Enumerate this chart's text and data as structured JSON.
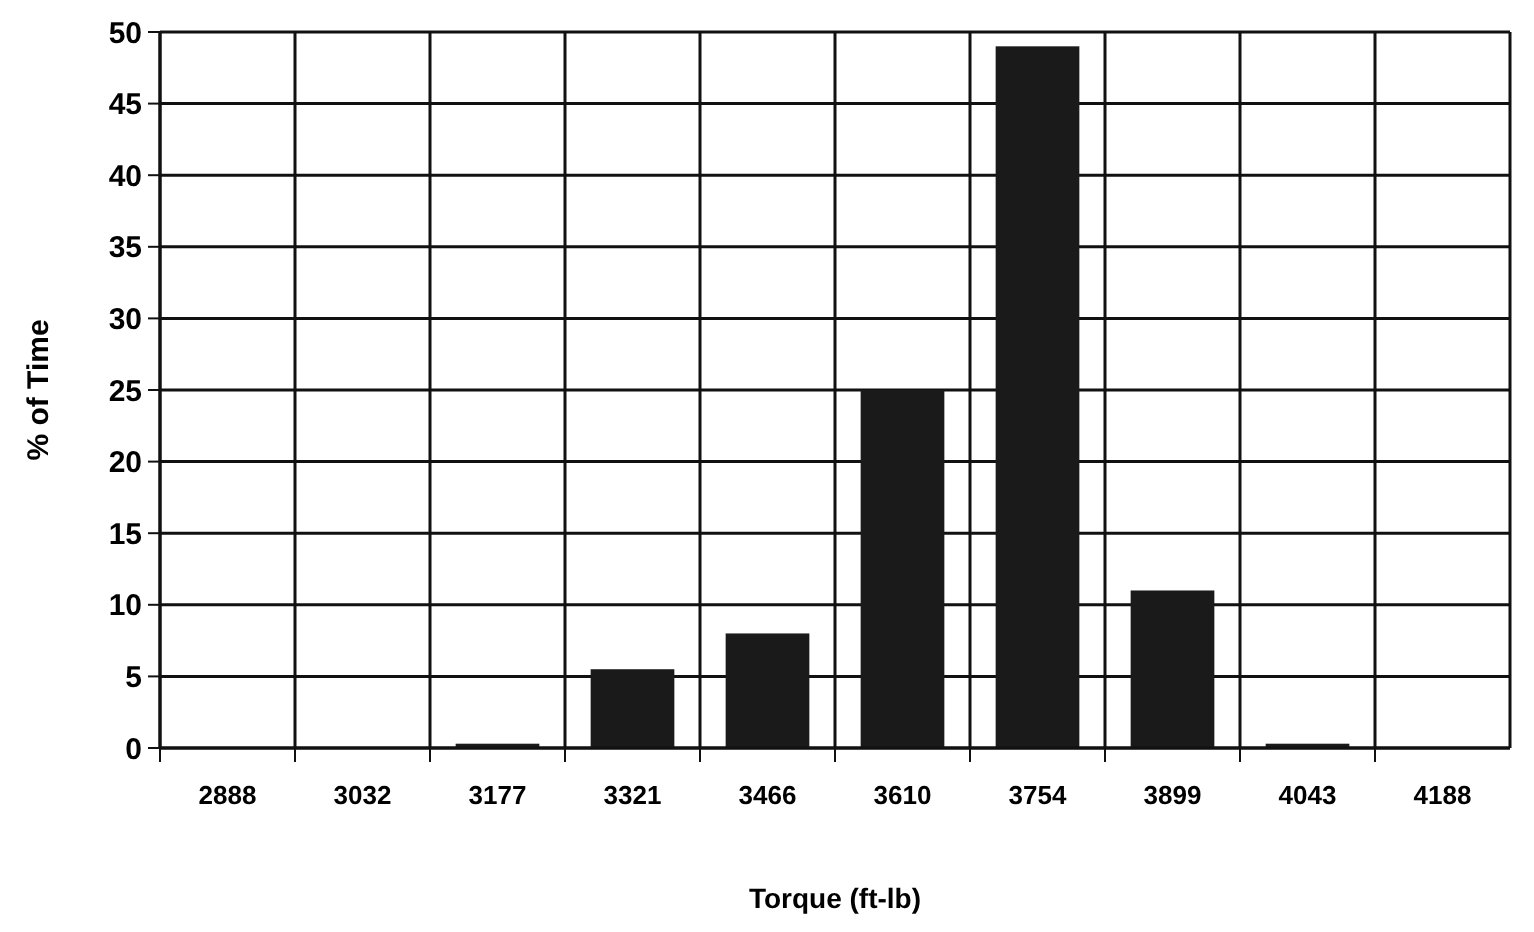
{
  "chart_data": {
    "type": "bar",
    "xlabel": "Torque (ft-lb)",
    "ylabel": "% of Time",
    "categories": [
      "2888",
      "3032",
      "3177",
      "3321",
      "3466",
      "3610",
      "3754",
      "3899",
      "4043",
      "4188"
    ],
    "values": [
      0,
      0,
      0.3,
      5.5,
      8,
      25,
      49,
      11,
      0.3,
      0
    ],
    "color": "#1a1a1a",
    "ylim": [
      0,
      50
    ],
    "yticks": [
      0,
      5,
      10,
      15,
      20,
      25,
      30,
      35,
      40,
      45,
      50
    ],
    "grid": true
  }
}
